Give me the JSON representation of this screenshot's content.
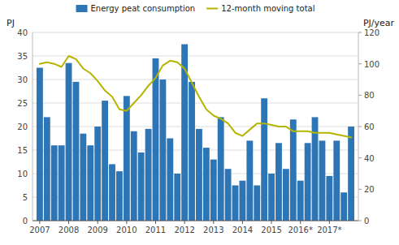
{
  "chart_data": {
    "type": "bar",
    "y_label": "PJ",
    "y2_label": "PJ/year",
    "x": [
      2007.0,
      2007.25,
      2007.5,
      2007.75,
      2008.0,
      2008.25,
      2008.5,
      2008.75,
      2009.0,
      2009.25,
      2009.5,
      2009.75,
      2010.0,
      2010.25,
      2010.5,
      2010.75,
      2011.0,
      2011.25,
      2011.5,
      2011.75,
      2012.0,
      2012.25,
      2012.5,
      2012.75,
      2013.0,
      2013.25,
      2013.5,
      2013.75,
      2014.0,
      2014.25,
      2014.5,
      2014.75,
      2015.0,
      2015.25,
      2015.5,
      2015.75,
      2016.0,
      2016.25,
      2016.5,
      2016.75,
      2017.0,
      2017.25,
      2017.5,
      2017.75
    ],
    "series": [
      {
        "name": "Energy peat consumption",
        "type": "bar",
        "color": "#2e75b6",
        "values": [
          32.5,
          22.0,
          16.0,
          16.0,
          33.5,
          29.5,
          18.5,
          16.0,
          20.0,
          25.5,
          12.0,
          10.5,
          26.5,
          19.0,
          14.5,
          19.5,
          34.5,
          30.0,
          17.5,
          10.0,
          37.5,
          29.5,
          19.5,
          15.5,
          13.0,
          22.0,
          11.0,
          7.5,
          8.5,
          17.0,
          7.5,
          26.0,
          10.0,
          16.5,
          11.0,
          21.5,
          8.5,
          16.5,
          22.0,
          17.0,
          9.5,
          17.0,
          6.0,
          20.0
        ]
      },
      {
        "name": "12-month moving total",
        "type": "line",
        "color": "#b5b500",
        "axis": "y2",
        "values": [
          100,
          101,
          100,
          98,
          105,
          103,
          97,
          94,
          89,
          83,
          79,
          71,
          70,
          75,
          80,
          86,
          91,
          99,
          102,
          101,
          97,
          88,
          79,
          71,
          67,
          65,
          62,
          56,
          54,
          58,
          62,
          62,
          61,
          60,
          60,
          57,
          57,
          57,
          56,
          56,
          56,
          55,
          54,
          53
        ]
      }
    ],
    "xlim": [
      2006.75,
      2018.0
    ],
    "xticks": [
      2007,
      2008,
      2009,
      2010,
      2011,
      2012,
      2013,
      2014,
      2015,
      {
        "value": 2016,
        "label": "2016*"
      },
      {
        "value": 2017,
        "label": "2017*"
      }
    ],
    "ylim": [
      0,
      40
    ],
    "yticks": [
      0,
      5,
      10,
      15,
      20,
      25,
      30,
      35,
      40
    ],
    "y2lim": [
      0,
      120
    ],
    "y2ticks": [
      0,
      20,
      40,
      60,
      80,
      100,
      120
    ],
    "grid": true,
    "legend": "top"
  }
}
